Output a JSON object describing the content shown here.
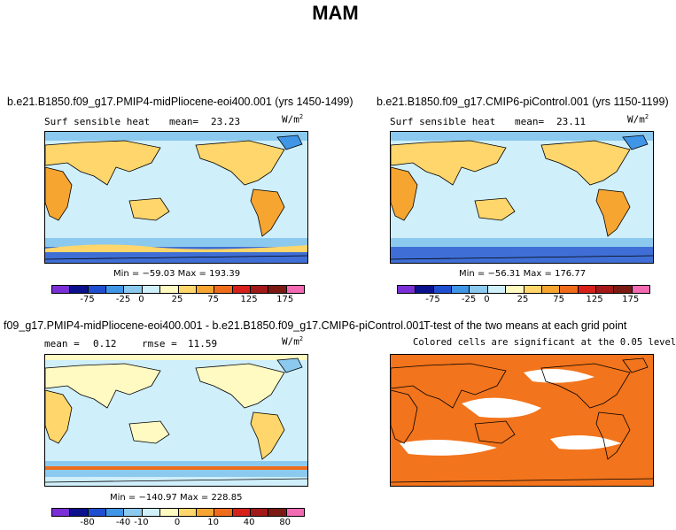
{
  "figure_title": "MAM",
  "colorbar_colors": [
    "#7b2fd6",
    "#0b108c",
    "#1f4fd0",
    "#3f95e6",
    "#8bc9ef",
    "#cfeffb",
    "#fff9c2",
    "#ffd66b",
    "#f7a531",
    "#ef6c1b",
    "#d6211a",
    "#a31818",
    "#7a1a12",
    "#f26ab2"
  ],
  "panels": {
    "p1": {
      "title": "b.e21.B1850.f09_g17.PMIP4-midPliocene-eoi400.001 (yrs 1450-1499)",
      "variable": "Surf sensible heat",
      "mean_label": "mean=",
      "mean_value": "23.23",
      "units": "W/m",
      "units_exp": "2",
      "minmax": "Min = −59.03 Max = 193.39",
      "ticks": [
        "-75",
        "-25",
        "0",
        "25",
        "75",
        "125",
        "175"
      ]
    },
    "p2": {
      "title": "b.e21.B1850.f09_g17.CMIP6-piControl.001 (yrs 1150-1199)",
      "variable": "Surf sensible heat",
      "mean_label": "mean=",
      "mean_value": "23.11",
      "units": "W/m",
      "units_exp": "2",
      "minmax": "Min = −56.31 Max = 176.77",
      "ticks": [
        "-75",
        "-25",
        "0",
        "25",
        "75",
        "125",
        "175"
      ]
    },
    "p3": {
      "title": "f09_g17.PMIP4-midPliocene-eoi400.001 - b.e21.B1850.f09_g17.CMIP6-piControl.001",
      "mean_label": "mean =",
      "mean_value": "0.12",
      "rmse_label": "rmse =",
      "rmse_value": "11.59",
      "units": "W/m",
      "units_exp": "2",
      "minmax": "Min = −140.97 Max = 228.85",
      "ticks": [
        "-80",
        "-40",
        "-10",
        "0",
        "10",
        "40",
        "80"
      ]
    },
    "p4": {
      "title": "T-test of the two means at each grid point",
      "note": "Colored cells are significant at the 0.05 level",
      "fill_color": "#f2741c"
    }
  }
}
